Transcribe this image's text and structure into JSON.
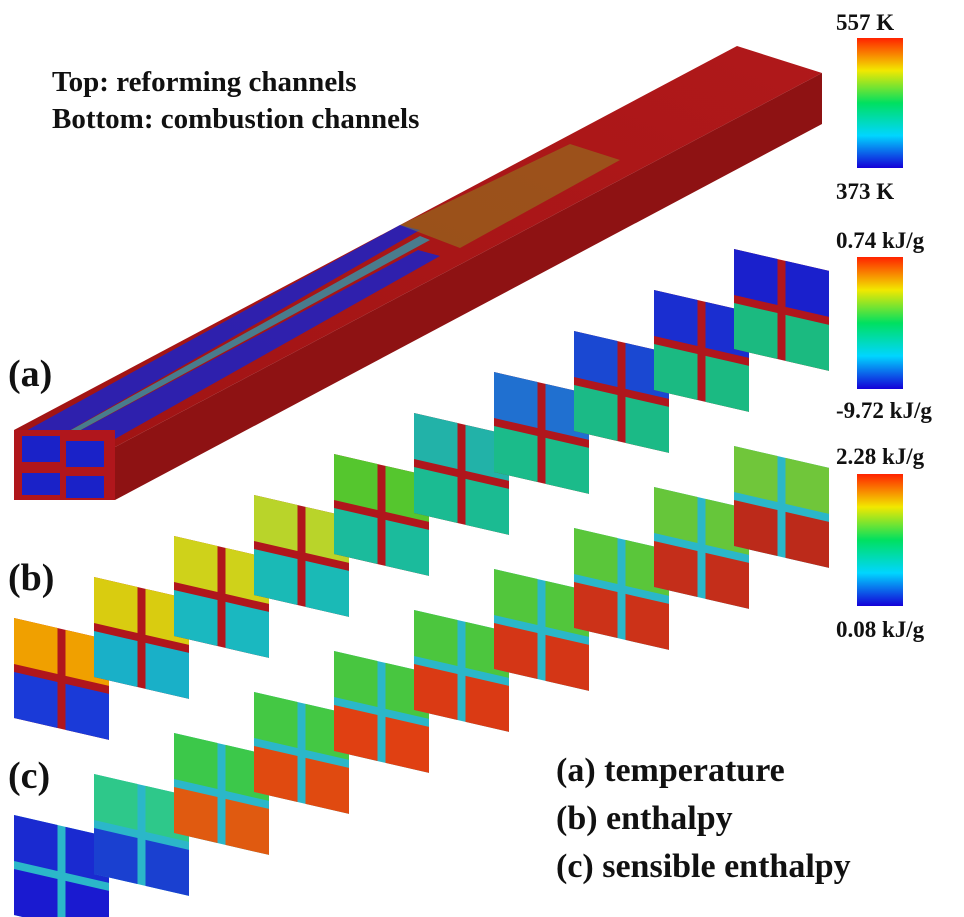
{
  "title_lines": [
    "Top: reforming channels",
    "Bottom: combustion channels"
  ],
  "panel_labels": [
    "(a)",
    "(b)",
    "(c)"
  ],
  "legend": [
    "(a) temperature",
    "(b) enthalpy",
    "(c) sensible enthalpy"
  ],
  "colorbars": [
    {
      "max_label": "557 K",
      "min_label": "373 K"
    },
    {
      "max_label": "0.74 kJ/g",
      "min_label": "-9.72 kJ/g"
    },
    {
      "max_label": "2.28 kJ/g",
      "min_label": "0.08 kJ/g"
    }
  ],
  "colors": {
    "colormap": [
      "#1400d8",
      "#00d6ff",
      "#00e060",
      "#f2e800",
      "#ff2200"
    ],
    "wall_red": "#b0161c",
    "wall_cyan": "#2bb7c9"
  },
  "slices_b": [
    {
      "top": "#f0a000",
      "bottom": "#1a3ad8"
    },
    {
      "top": "#d9cc10",
      "bottom": "#19b0c8"
    },
    {
      "top": "#cfd21a",
      "bottom": "#1ab8c0"
    },
    {
      "top": "#b9d42a",
      "bottom": "#1abab6"
    },
    {
      "top": "#55c62e",
      "bottom": "#1bbb9c"
    },
    {
      "top": "#22b2a8",
      "bottom": "#1bbb92"
    },
    {
      "top": "#2070d0",
      "bottom": "#1bbb8a"
    },
    {
      "top": "#1a48d2",
      "bottom": "#1bba86"
    },
    {
      "top": "#1a2ed0",
      "bottom": "#1bba82"
    },
    {
      "top": "#1a20cc",
      "bottom": "#1bba80"
    }
  ],
  "slices_c": [
    {
      "top": "#1a2ad0",
      "bottom": "#1a1ad0"
    },
    {
      "top": "#2ec88a",
      "bottom": "#1a40d0"
    },
    {
      "top": "#3cc84a",
      "bottom": "#e05a10"
    },
    {
      "top": "#44c844",
      "bottom": "#e04a10"
    },
    {
      "top": "#48c640",
      "bottom": "#e04012"
    },
    {
      "top": "#4cc63e",
      "bottom": "#da3a14"
    },
    {
      "top": "#52c63c",
      "bottom": "#d43616"
    },
    {
      "top": "#5ac63a",
      "bottom": "#cc3218"
    },
    {
      "top": "#66c63a",
      "bottom": "#c42e1a"
    },
    {
      "top": "#70c63a",
      "bottom": "#bc2a1a"
    }
  ]
}
